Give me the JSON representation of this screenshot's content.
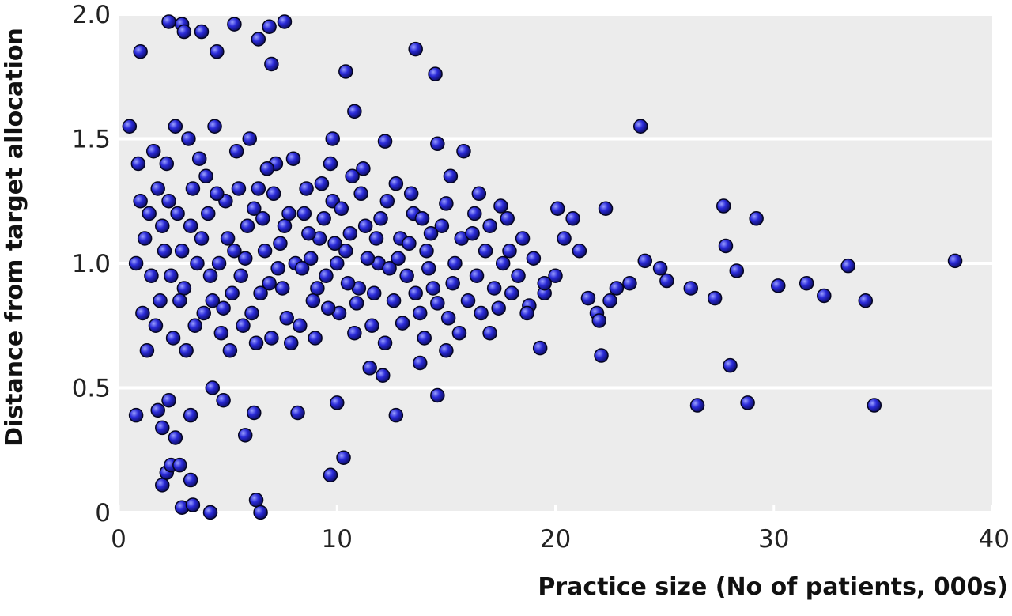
{
  "chart_data": {
    "type": "scatter",
    "xlabel": "Practice size (No of patients, 000s)",
    "ylabel": "Distance from target allocation",
    "color": "#2a2ad8",
    "xlim": [
      0,
      40
    ],
    "ylim": [
      0,
      2
    ],
    "xticks": [
      0,
      10,
      20,
      30,
      40
    ],
    "yticks": [
      0,
      0.5,
      {
        "value": 1,
        "label": "1.0"
      },
      1.5,
      {
        "value": 2,
        "label": "2.0"
      }
    ],
    "grid": true,
    "x": [
      0.5,
      0.8,
      1.8,
      2.0,
      2.2,
      2.4,
      2.8,
      2.6,
      2.9,
      3.4,
      4.2,
      3.3,
      3.3,
      2.0,
      2.3,
      5.8,
      6.3,
      6.5,
      6.2,
      9.7,
      10.3,
      10.0,
      12.7,
      14.6,
      13.6,
      14.5,
      10.4,
      10.8,
      2.3,
      2.9,
      5.3,
      7.6,
      6.9,
      3.0,
      3.8,
      6.4,
      1.0,
      4.5,
      7.0,
      23.9,
      26.5,
      28.8,
      34.6,
      28.0,
      22.1,
      19.3,
      27.7,
      29.2,
      22.3,
      20.1,
      38.3,
      33.4,
      30.2,
      31.5,
      32.3,
      34.2,
      27.3,
      26.2,
      28.3,
      25.1,
      24.8,
      24.1,
      27.8,
      23.4,
      22.8,
      21.5,
      21.9,
      22.5,
      22.0,
      21.1,
      20.8,
      20.4,
      19.5,
      18.8,
      20.0,
      17.5,
      15.8,
      14.6,
      12.2,
      9.8,
      16.3,
      17.0,
      15.0,
      13.8,
      12.1,
      11.5,
      8.2,
      4.8,
      4.3,
      1.2,
      1.5,
      1.1,
      1.8,
      2.1,
      2.5,
      2.2,
      2.7,
      3.0,
      3.2,
      3.5,
      3.8,
      4.0,
      4.3,
      4.6,
      4.9,
      5.1,
      5.4,
      5.6,
      5.9,
      6.1,
      6.4,
      6.7,
      7.0,
      7.2,
      7.5,
      7.8,
      8.1,
      8.3,
      8.6,
      8.9,
      9.2,
      9.5,
      9.8,
      10.1,
      10.4,
      10.7,
      11.0,
      11.3,
      11.6,
      11.9,
      12.3,
      12.6,
      12.9,
      13.2,
      13.5,
      13.8,
      14.1,
      14.4,
      14.8,
      15.1,
      15.4,
      15.7,
      16.0,
      16.4,
      16.8,
      17.2,
      17.6,
      18.0,
      18.5,
      1.0,
      1.3,
      1.6,
      1.9,
      2.0,
      2.4,
      2.6,
      2.9,
      3.1,
      3.4,
      3.6,
      3.9,
      4.1,
      4.4,
      4.7,
      5.0,
      5.2,
      5.5,
      5.8,
      6.0,
      6.3,
      6.6,
      6.9,
      7.1,
      7.4,
      7.7,
      8.0,
      8.4,
      8.7,
      9.0,
      9.3,
      9.6,
      9.9,
      10.2,
      10.5,
      10.8,
      11.1,
      11.4,
      11.7,
      12.0,
      12.4,
      12.7,
      13.0,
      13.3,
      13.6,
      13.9,
      14.2,
      14.6,
      15.0,
      15.3,
      15.6,
      16.2,
      16.6,
      17.0,
      17.4,
      17.9,
      18.3,
      19.0,
      19.5,
      0.8,
      0.9,
      1.4,
      1.7,
      2.3,
      2.8,
      3.3,
      3.7,
      4.2,
      4.5,
      4.8,
      5.3,
      5.7,
      6.2,
      6.5,
      6.8,
      7.3,
      7.6,
      7.9,
      8.5,
      8.8,
      9.1,
      9.4,
      9.7,
      10.0,
      10.6,
      10.9,
      11.2,
      11.8,
      12.2,
      12.8,
      13.4,
      14.0,
      14.3,
      15.2,
      16.5,
      17.8,
      18.7
    ],
    "values": [
      1.55,
      0.39,
      0.41,
      0.11,
      0.16,
      0.19,
      0.19,
      0.3,
      0.02,
      0.03,
      0.0,
      0.13,
      0.39,
      0.34,
      0.45,
      0.31,
      0.05,
      0.0,
      0.4,
      0.15,
      0.22,
      0.44,
      0.39,
      0.47,
      1.86,
      1.76,
      1.77,
      1.61,
      1.97,
      1.96,
      1.96,
      1.97,
      1.95,
      1.93,
      1.93,
      1.9,
      1.85,
      1.85,
      1.8,
      1.55,
      0.43,
      0.44,
      0.43,
      0.59,
      0.63,
      0.66,
      1.23,
      1.18,
      1.22,
      1.22,
      1.01,
      0.99,
      0.91,
      0.92,
      0.87,
      0.85,
      0.86,
      0.9,
      0.97,
      0.93,
      0.98,
      1.01,
      1.07,
      0.92,
      0.9,
      0.86,
      0.8,
      0.85,
      0.77,
      1.05,
      1.18,
      1.1,
      0.88,
      0.83,
      0.95,
      1.23,
      1.45,
      1.48,
      1.49,
      1.5,
      1.2,
      0.72,
      0.65,
      0.6,
      0.55,
      0.58,
      0.4,
      0.45,
      0.5,
      1.1,
      0.95,
      0.8,
      1.3,
      1.05,
      0.7,
      1.4,
      1.2,
      0.9,
      1.5,
      0.75,
      1.1,
      1.35,
      0.85,
      1.0,
      1.25,
      0.65,
      1.45,
      0.95,
      1.15,
      0.8,
      1.3,
      1.05,
      0.7,
      1.4,
      0.9,
      1.2,
      1.0,
      0.75,
      1.3,
      0.85,
      1.1,
      0.95,
      1.25,
      0.8,
      1.05,
      1.35,
      0.9,
      1.15,
      0.75,
      1.0,
      1.25,
      0.85,
      1.1,
      0.95,
      1.2,
      0.8,
      1.05,
      0.9,
      1.15,
      0.78,
      1.0,
      1.1,
      0.85,
      0.95,
      1.05,
      0.9,
      1.0,
      0.88,
      1.1,
      1.25,
      0.65,
      1.45,
      0.85,
      1.15,
      0.95,
      1.55,
      1.05,
      0.65,
      1.3,
      1.0,
      0.8,
      1.2,
      1.55,
      0.72,
      1.1,
      0.88,
      1.3,
      1.02,
      1.5,
      0.68,
      1.18,
      0.92,
      1.28,
      1.08,
      0.78,
      1.42,
      0.98,
      1.12,
      0.7,
      1.32,
      0.82,
      1.08,
      1.22,
      0.92,
      0.72,
      1.28,
      1.02,
      0.88,
      1.18,
      0.98,
      1.32,
      0.76,
      1.08,
      0.88,
      1.18,
      0.98,
      0.84,
      1.24,
      0.92,
      0.72,
      1.12,
      0.8,
      1.15,
      0.82,
      1.05,
      0.95,
      1.02,
      0.92,
      1.0,
      1.4,
      1.2,
      0.75,
      1.25,
      0.85,
      1.15,
      1.42,
      0.95,
      1.28,
      0.82,
      1.05,
      0.75,
      1.22,
      0.88,
      1.38,
      0.98,
      1.15,
      0.68,
      1.2,
      1.02,
      0.9,
      1.18,
      1.4,
      1.0,
      1.12,
      0.84,
      1.38,
      1.1,
      0.68,
      1.02,
      1.28,
      0.7,
      1.12,
      1.35,
      1.28,
      1.18,
      0.8
    ]
  }
}
